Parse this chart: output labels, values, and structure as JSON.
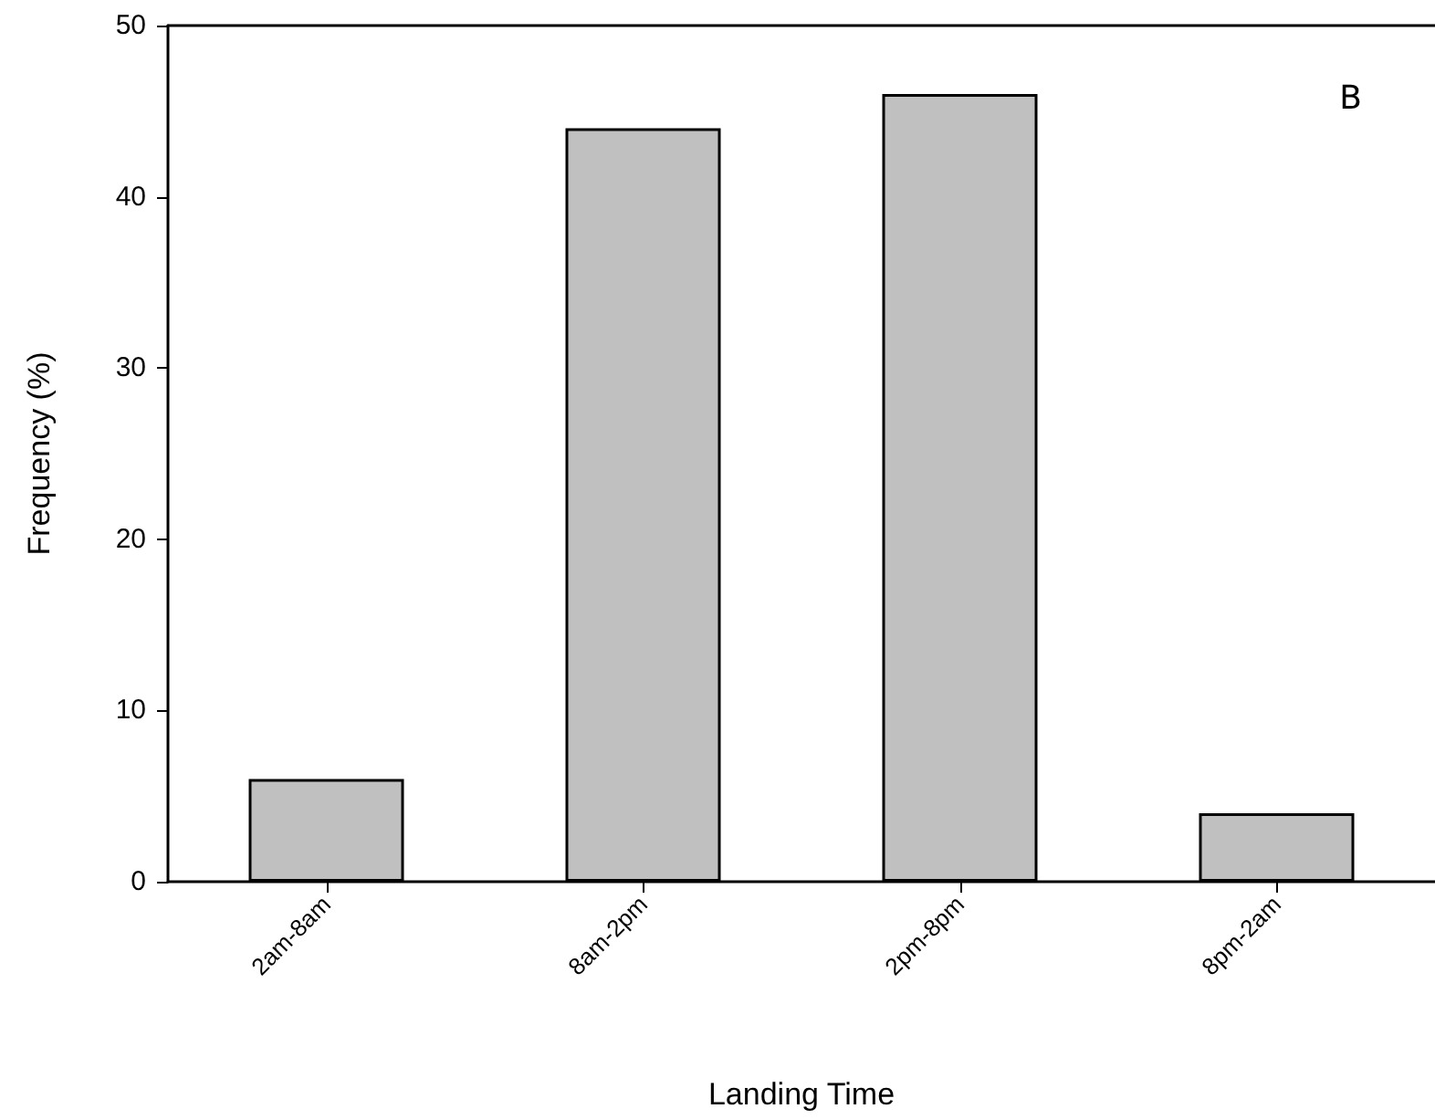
{
  "chart_data": {
    "type": "bar",
    "xlabel": "Landing Time",
    "ylabel": "Frequency (%)",
    "categories": [
      "2am-8am",
      "8am-2pm",
      "2pm-8pm",
      "8pm-2am"
    ],
    "values": [
      6,
      44,
      46,
      4
    ],
    "color": "#c0c0c0",
    "ylim": [
      0,
      50
    ],
    "yticks": [
      0,
      10,
      20,
      30,
      40,
      50
    ],
    "annotations": [
      "B"
    ]
  }
}
